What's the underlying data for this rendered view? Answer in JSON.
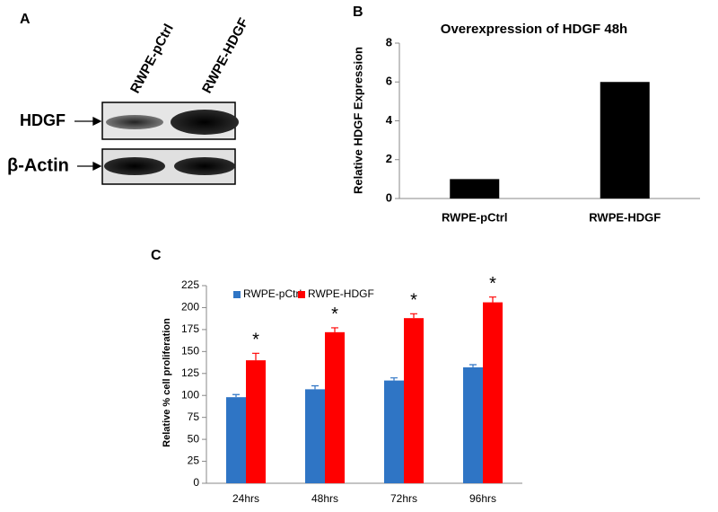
{
  "panel_a": {
    "label": "A",
    "lanes": [
      "RWPE-pCtrl",
      "RWPE-HDGF"
    ],
    "rows": [
      "HDGF",
      "β-Actin"
    ]
  },
  "chart_data": [
    {
      "type": "bar",
      "panel_label": "B",
      "title": "Overexpression of HDGF 48h",
      "y_label": "Relative HDGF Expression",
      "categories": [
        "RWPE-pCtrl",
        "RWPE-HDGF"
      ],
      "values": [
        1,
        6
      ],
      "color": "#000000",
      "ylim": [
        0,
        8
      ],
      "yticks": [
        0,
        2,
        4,
        6,
        8
      ]
    },
    {
      "type": "grouped_bar",
      "panel_label": "C",
      "y_label": "Relative % cell proliferation",
      "categories": [
        "24hrs",
        "48hrs",
        "72hrs",
        "96hrs"
      ],
      "series": [
        {
          "name": "RWPE-pCtrl",
          "color": "#2f75c5",
          "values": [
            98,
            107,
            117,
            132
          ],
          "errors": [
            3,
            4,
            3,
            3
          ]
        },
        {
          "name": "RWPE-HDGF",
          "color": "#ff0000",
          "values": [
            140,
            172,
            188,
            206
          ],
          "errors": [
            8,
            5,
            5,
            6
          ]
        }
      ],
      "annotations": [
        "*",
        "*",
        "*",
        "*"
      ],
      "ylim": [
        0,
        225
      ],
      "yticks": [
        0,
        25,
        50,
        75,
        100,
        125,
        150,
        175,
        200,
        225
      ],
      "legend": "top-left"
    }
  ]
}
